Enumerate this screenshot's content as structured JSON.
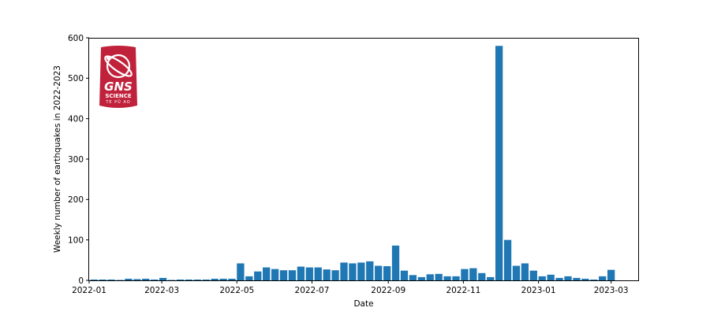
{
  "chart_data": {
    "type": "bar",
    "xlabel": "Date",
    "ylabel": "Weekly number of earthquakes in 2022-2023",
    "ylim": [
      0,
      600
    ],
    "yticks": [
      0,
      100,
      200,
      300,
      400,
      500,
      600
    ],
    "xlim": [
      "2022-01-01",
      "2023-03-23"
    ],
    "xticks": [
      "2022-01",
      "2022-03",
      "2022-05",
      "2022-07",
      "2022-09",
      "2022-11",
      "2023-01",
      "2023-03"
    ],
    "bar_color": "#1f77b4",
    "series": [
      {
        "x": [
          "2022-01-02",
          "2022-01-09",
          "2022-01-16",
          "2022-01-23",
          "2022-01-30",
          "2022-02-06",
          "2022-02-13",
          "2022-02-20",
          "2022-02-27",
          "2022-03-06",
          "2022-03-13",
          "2022-03-20",
          "2022-03-27",
          "2022-04-03",
          "2022-04-10",
          "2022-04-17",
          "2022-04-24",
          "2022-05-01",
          "2022-05-08",
          "2022-05-15",
          "2022-05-22",
          "2022-05-29",
          "2022-06-05",
          "2022-06-12",
          "2022-06-19",
          "2022-06-26",
          "2022-07-03",
          "2022-07-10",
          "2022-07-17",
          "2022-07-24",
          "2022-07-31",
          "2022-08-07",
          "2022-08-14",
          "2022-08-21",
          "2022-08-28",
          "2022-09-04",
          "2022-09-11",
          "2022-09-18",
          "2022-09-25",
          "2022-10-02",
          "2022-10-09",
          "2022-10-16",
          "2022-10-23",
          "2022-10-30",
          "2022-11-06",
          "2022-11-13",
          "2022-11-20",
          "2022-11-27",
          "2022-12-04",
          "2022-12-11",
          "2022-12-18",
          "2022-12-25",
          "2023-01-01",
          "2023-01-08",
          "2023-01-15",
          "2023-01-22",
          "2023-01-29",
          "2023-02-05",
          "2023-02-12",
          "2023-02-19",
          "2023-02-26",
          "2023-03-05"
        ],
        "values": [
          2,
          2,
          2,
          1,
          4,
          3,
          4,
          2,
          6,
          1,
          2,
          2,
          2,
          2,
          4,
          4,
          4,
          42,
          10,
          22,
          32,
          28,
          25,
          25,
          34,
          32,
          32,
          27,
          25,
          44,
          42,
          44,
          47,
          36,
          35,
          86,
          24,
          13,
          8,
          15,
          16,
          10,
          10,
          28,
          30,
          18,
          8,
          580,
          100,
          36,
          42,
          24,
          10,
          14,
          6,
          10,
          6,
          4,
          2,
          10,
          26,
          0
        ]
      }
    ]
  },
  "logo": {
    "main_text": "GNS",
    "sub_text": "SCIENCE",
    "tiny_text": "TE PŪ AO",
    "color": "#c0223b"
  }
}
